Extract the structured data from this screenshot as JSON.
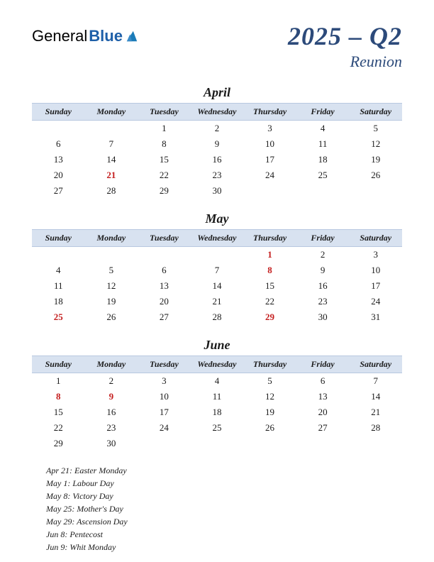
{
  "logo": {
    "part1": "General",
    "part2": "Blue"
  },
  "title": {
    "main": "2025 – Q2",
    "sub": "Reunion"
  },
  "day_headers": [
    "Sunday",
    "Monday",
    "Tuesday",
    "Wednesday",
    "Thursday",
    "Friday",
    "Saturday"
  ],
  "colors": {
    "header_bg": "#d8e2f0",
    "header_border": "#b8c8e0",
    "title_text": "#2c4a7a",
    "holiday_text": "#c41e1e",
    "logo_general": "#3a4a6b",
    "logo_blue": "#1e5fa8",
    "logo_icon": "#1b7bb8"
  },
  "months": [
    {
      "name": "April",
      "weeks": [
        [
          null,
          null,
          {
            "d": 1
          },
          {
            "d": 2
          },
          {
            "d": 3
          },
          {
            "d": 4
          },
          {
            "d": 5
          }
        ],
        [
          {
            "d": 6
          },
          {
            "d": 7
          },
          {
            "d": 8
          },
          {
            "d": 9
          },
          {
            "d": 10
          },
          {
            "d": 11
          },
          {
            "d": 12
          }
        ],
        [
          {
            "d": 13
          },
          {
            "d": 14
          },
          {
            "d": 15
          },
          {
            "d": 16
          },
          {
            "d": 17
          },
          {
            "d": 18
          },
          {
            "d": 19
          }
        ],
        [
          {
            "d": 20
          },
          {
            "d": 21,
            "h": true
          },
          {
            "d": 22
          },
          {
            "d": 23
          },
          {
            "d": 24
          },
          {
            "d": 25
          },
          {
            "d": 26
          }
        ],
        [
          {
            "d": 27
          },
          {
            "d": 28
          },
          {
            "d": 29
          },
          {
            "d": 30
          },
          null,
          null,
          null
        ]
      ]
    },
    {
      "name": "May",
      "weeks": [
        [
          null,
          null,
          null,
          null,
          {
            "d": 1,
            "h": true
          },
          {
            "d": 2
          },
          {
            "d": 3
          }
        ],
        [
          {
            "d": 4
          },
          {
            "d": 5
          },
          {
            "d": 6
          },
          {
            "d": 7
          },
          {
            "d": 8,
            "h": true
          },
          {
            "d": 9
          },
          {
            "d": 10
          }
        ],
        [
          {
            "d": 11
          },
          {
            "d": 12
          },
          {
            "d": 13
          },
          {
            "d": 14
          },
          {
            "d": 15
          },
          {
            "d": 16
          },
          {
            "d": 17
          }
        ],
        [
          {
            "d": 18
          },
          {
            "d": 19
          },
          {
            "d": 20
          },
          {
            "d": 21
          },
          {
            "d": 22
          },
          {
            "d": 23
          },
          {
            "d": 24
          }
        ],
        [
          {
            "d": 25,
            "h": true
          },
          {
            "d": 26
          },
          {
            "d": 27
          },
          {
            "d": 28
          },
          {
            "d": 29,
            "h": true
          },
          {
            "d": 30
          },
          {
            "d": 31
          }
        ]
      ]
    },
    {
      "name": "June",
      "weeks": [
        [
          {
            "d": 1
          },
          {
            "d": 2
          },
          {
            "d": 3
          },
          {
            "d": 4
          },
          {
            "d": 5
          },
          {
            "d": 6
          },
          {
            "d": 7
          }
        ],
        [
          {
            "d": 8,
            "h": true
          },
          {
            "d": 9,
            "h": true
          },
          {
            "d": 10
          },
          {
            "d": 11
          },
          {
            "d": 12
          },
          {
            "d": 13
          },
          {
            "d": 14
          }
        ],
        [
          {
            "d": 15
          },
          {
            "d": 16
          },
          {
            "d": 17
          },
          {
            "d": 18
          },
          {
            "d": 19
          },
          {
            "d": 20
          },
          {
            "d": 21
          }
        ],
        [
          {
            "d": 22
          },
          {
            "d": 23
          },
          {
            "d": 24
          },
          {
            "d": 25
          },
          {
            "d": 26
          },
          {
            "d": 27
          },
          {
            "d": 28
          }
        ],
        [
          {
            "d": 29
          },
          {
            "d": 30
          },
          null,
          null,
          null,
          null,
          null
        ]
      ]
    }
  ],
  "holidays": [
    "Apr 21: Easter Monday",
    "May 1: Labour Day",
    "May 8: Victory Day",
    "May 25: Mother's Day",
    "May 29: Ascension Day",
    "Jun 8: Pentecost",
    "Jun 9: Whit Monday"
  ]
}
